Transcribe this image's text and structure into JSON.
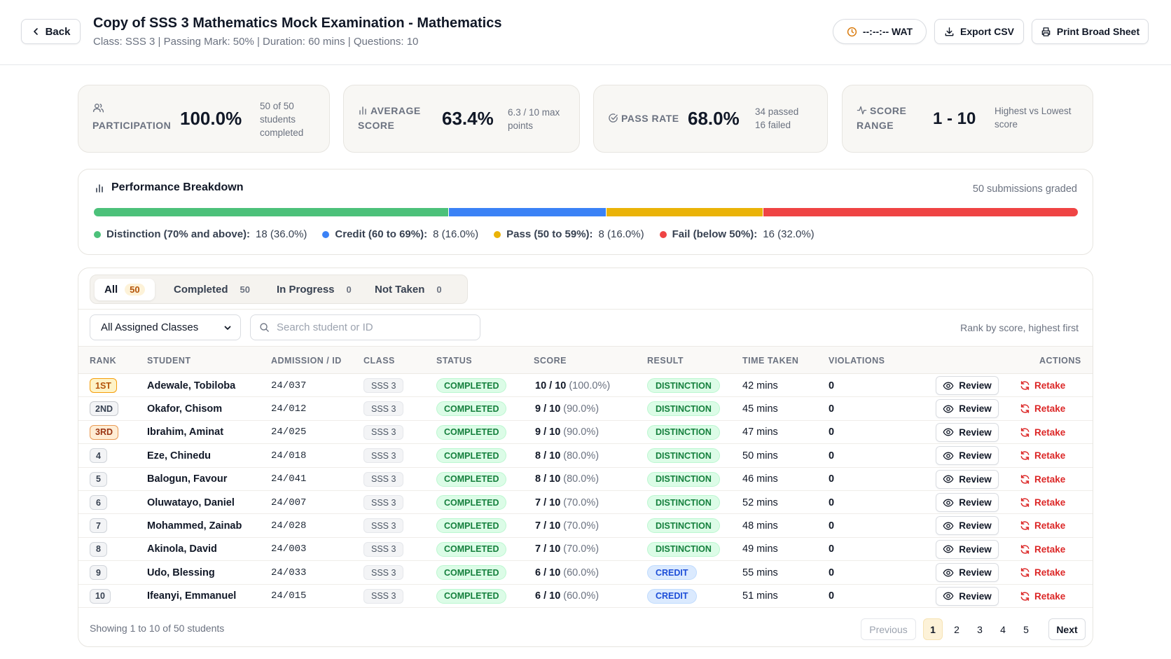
{
  "header": {
    "back_label": "Back",
    "title": "Copy of SSS 3 Mathematics Mock Examination - Mathematics",
    "subtitle": "Class: SSS 3 | Passing Mark: 50% | Duration: 60 mins | Questions: 10",
    "clock_label": "--:--:-- WAT",
    "export_label": "Export CSV",
    "print_label": "Print Broad Sheet"
  },
  "stats": {
    "participation": {
      "label": "Participation",
      "value": "100.0%",
      "note": "50 of 50 students completed"
    },
    "average": {
      "label_line1": "Average",
      "label_line2": "Score",
      "value": "63.4%",
      "note": "6.3 / 10 max points"
    },
    "pass_rate": {
      "label": "Pass Rate",
      "value": "68.0%",
      "note_line1": "34 passed",
      "note_line2": "16 failed"
    },
    "range": {
      "label_line1": "Score",
      "label_line2": "Range",
      "value": "1 - 10",
      "note": "Highest vs Lowest score"
    }
  },
  "performance": {
    "title": "Performance Breakdown",
    "subtitle": "50 submissions graded",
    "segments": [
      {
        "label": "Distinction (70% and above):",
        "value": "18 (36.0%)",
        "fraction": 0.36,
        "color": "#4cc17a"
      },
      {
        "label": "Credit (60 to 69%):",
        "value": "8 (16.0%)",
        "fraction": 0.16,
        "color": "#3b82f6"
      },
      {
        "label": "Pass (50 to 59%):",
        "value": "8  (16.0%)",
        "fraction": 0.16,
        "color": "#eab308"
      },
      {
        "label": "Fail (below 50%):",
        "value": "16 (32.0%)",
        "fraction": 0.32,
        "color": "#ef4444"
      }
    ]
  },
  "tabs": [
    {
      "label": "All",
      "count": "50"
    },
    {
      "label": "Completed",
      "count": "50"
    },
    {
      "label": "In Progress",
      "count": "0"
    },
    {
      "label": "Not Taken",
      "count": "0"
    }
  ],
  "filters": {
    "class_select": "All Assigned Classes",
    "search_placeholder": "Search student or ID",
    "rank_note": "Rank by score, highest first"
  },
  "table": {
    "columns": [
      "RANK",
      "STUDENT",
      "ADMISSION / ID",
      "CLASS",
      "STATUS",
      "SCORE",
      "RESULT",
      "TIME TAKEN",
      "VIOLATIONS",
      "ACTIONS"
    ],
    "rows": [
      {
        "rank": "1ST",
        "rank_style": "gold",
        "student": "Adewale, Tobiloba",
        "id": "24/037",
        "class": "SSS 3",
        "status": "COMPLETED",
        "score": "10 / 10",
        "pct": "(100.0%)",
        "result": "DISTINCTION",
        "time": "42 mins",
        "violations": "0"
      },
      {
        "rank": "2ND",
        "rank_style": "silver",
        "student": "Okafor, Chisom",
        "id": "24/012",
        "class": "SSS 3",
        "status": "COMPLETED",
        "score": "9 / 10",
        "pct": "(90.0%)",
        "result": "DISTINCTION",
        "time": "45 mins",
        "violations": "0"
      },
      {
        "rank": "3RD",
        "rank_style": "bronze",
        "student": "Ibrahim, Aminat",
        "id": "24/025",
        "class": "SSS 3",
        "status": "COMPLETED",
        "score": "9 / 10",
        "pct": "(90.0%)",
        "result": "DISTINCTION",
        "time": "47 mins",
        "violations": "0"
      },
      {
        "rank": "4",
        "rank_style": "plain",
        "student": "Eze, Chinedu",
        "id": "24/018",
        "class": "SSS 3",
        "status": "COMPLETED",
        "score": "8 / 10",
        "pct": "(80.0%)",
        "result": "DISTINCTION",
        "time": "50 mins",
        "violations": "0"
      },
      {
        "rank": "5",
        "rank_style": "plain",
        "student": "Balogun, Favour",
        "id": "24/041",
        "class": "SSS 3",
        "status": "COMPLETED",
        "score": "8 / 10",
        "pct": "(80.0%)",
        "result": "DISTINCTION",
        "time": "46 mins",
        "violations": "0"
      },
      {
        "rank": "6",
        "rank_style": "plain",
        "student": "Oluwatayo, Daniel",
        "id": "24/007",
        "class": "SSS 3",
        "status": "COMPLETED",
        "score": "7 / 10",
        "pct": "(70.0%)",
        "result": "DISTINCTION",
        "time": "52 mins",
        "violations": "0"
      },
      {
        "rank": "7",
        "rank_style": "plain",
        "student": "Mohammed, Zainab",
        "id": "24/028",
        "class": "SSS 3",
        "status": "COMPLETED",
        "score": "7 / 10",
        "pct": "(70.0%)",
        "result": "DISTINCTION",
        "time": "48 mins",
        "violations": "0"
      },
      {
        "rank": "8",
        "rank_style": "plain",
        "student": "Akinola, David",
        "id": "24/003",
        "class": "SSS 3",
        "status": "COMPLETED",
        "score": "7 / 10",
        "pct": "(70.0%)",
        "result": "DISTINCTION",
        "time": "49 mins",
        "violations": "0"
      },
      {
        "rank": "9",
        "rank_style": "plain",
        "student": "Udo, Blessing",
        "id": "24/033",
        "class": "SSS 3",
        "status": "COMPLETED",
        "score": "6 / 10",
        "pct": "(60.0%)",
        "result": "CREDIT",
        "time": "55 mins",
        "violations": "0"
      },
      {
        "rank": "10",
        "rank_style": "plain",
        "student": "Ifeanyi, Emmanuel",
        "id": "24/015",
        "class": "SSS 3",
        "status": "COMPLETED",
        "score": "6 / 10",
        "pct": "(60.0%)",
        "result": "CREDIT",
        "time": "51 mins",
        "violations": "0"
      }
    ],
    "review_label": "Review",
    "retake_label": "Retake"
  },
  "pagination": {
    "summary": "Showing 1 to 10 of 50 students",
    "prev_label": "Previous",
    "pages": [
      "1",
      "2",
      "3",
      "4",
      "5"
    ],
    "current_page": "1",
    "next_label": "Next"
  },
  "icons": {
    "back": "chevron-left-icon",
    "clock": "clock-icon",
    "export": "download-icon",
    "print": "printer-icon",
    "participation": "users-icon",
    "average": "bar-chart-icon",
    "pass_rate": "check-circle-icon",
    "range": "activity-icon",
    "search": "search-icon",
    "review": "eye-icon",
    "retake": "refresh-icon"
  }
}
